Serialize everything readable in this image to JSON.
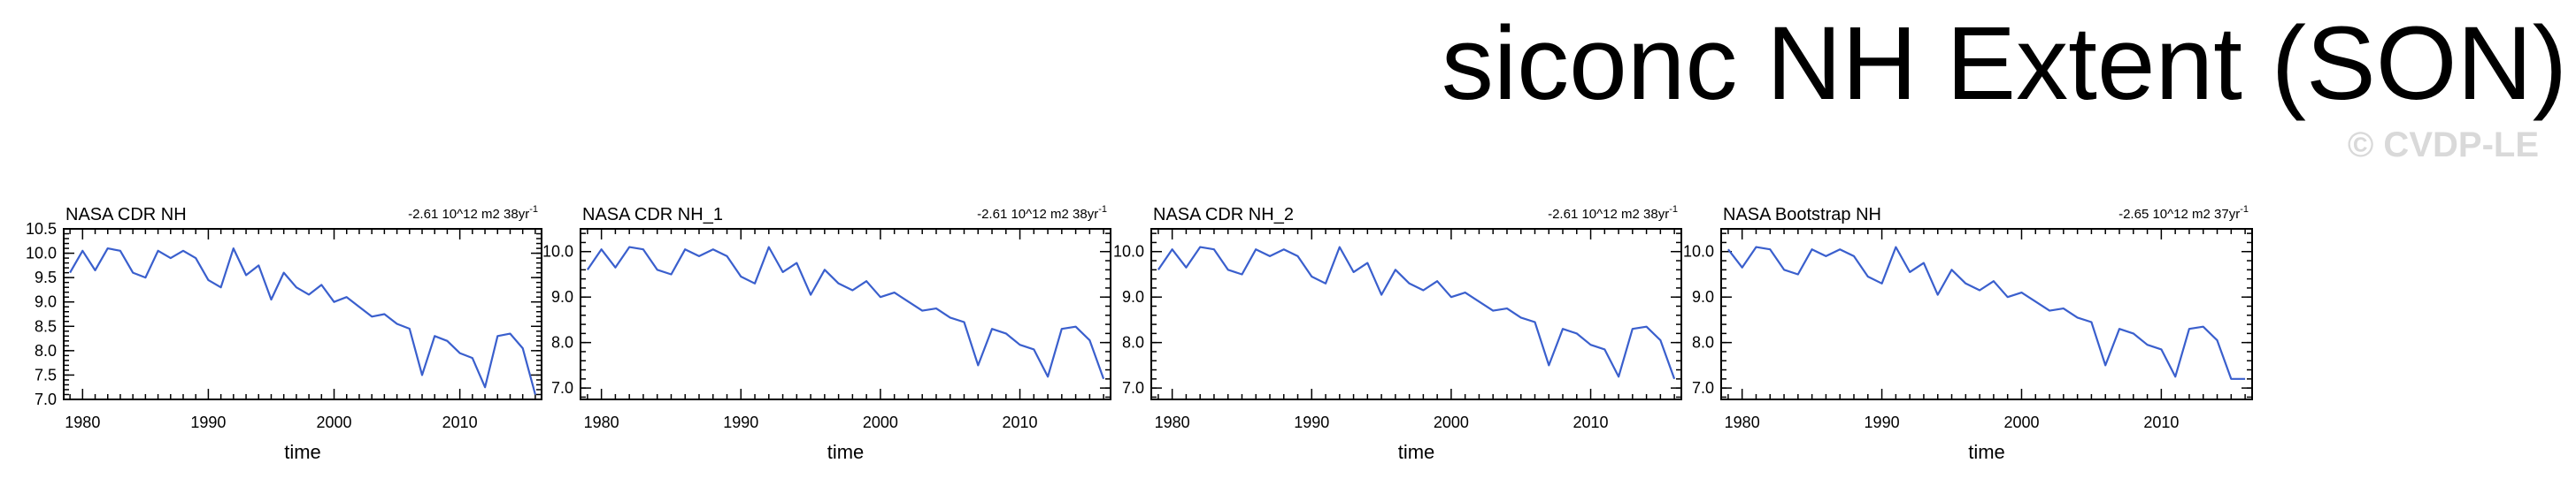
{
  "page": {
    "title": "siconc NH Extent (SON)",
    "watermark": "© CVDP-LE"
  },
  "colors": {
    "line": "#3a5fcd",
    "axis": "#000000",
    "watermark": "#d9d9d9"
  },
  "chart_data": [
    {
      "type": "line",
      "title": "NASA CDR NH",
      "trend": "-2.61 10^12 m2 38yr",
      "trend_sup": "-1",
      "xlabel": "time",
      "ylabel": "",
      "xlim": [
        1978.5,
        2016.5
      ],
      "ylim": [
        7.0,
        10.5
      ],
      "xticks": [
        1980,
        1990,
        2000,
        2010
      ],
      "yticks": [
        7.0,
        7.5,
        8.0,
        8.5,
        9.0,
        9.5,
        10.0,
        10.5
      ],
      "ytick_labels": [
        "7.0",
        "7.5",
        "8.0",
        "8.5",
        "9.0",
        "9.5",
        "10.0",
        "10.5"
      ],
      "x": [
        1979,
        1980,
        1981,
        1982,
        1983,
        1984,
        1985,
        1986,
        1987,
        1988,
        1989,
        1990,
        1991,
        1992,
        1993,
        1994,
        1995,
        1996,
        1997,
        1998,
        1999,
        2000,
        2001,
        2002,
        2003,
        2004,
        2005,
        2006,
        2007,
        2008,
        2009,
        2010,
        2011,
        2012,
        2013,
        2014,
        2015,
        2016
      ],
      "y": [
        9.6,
        10.05,
        9.65,
        10.1,
        10.05,
        9.6,
        9.5,
        10.05,
        9.9,
        10.05,
        9.9,
        9.45,
        9.3,
        10.1,
        9.55,
        9.75,
        9.05,
        9.6,
        9.3,
        9.15,
        9.35,
        9.0,
        9.1,
        8.9,
        8.7,
        8.75,
        8.55,
        8.45,
        7.5,
        8.3,
        8.2,
        7.95,
        7.85,
        7.25,
        8.3,
        8.35,
        8.05,
        7.1
      ]
    },
    {
      "type": "line",
      "title": "NASA CDR NH_1",
      "trend": "-2.61 10^12 m2 38yr",
      "trend_sup": "-1",
      "xlabel": "time",
      "ylabel": "",
      "xlim": [
        1978.5,
        2016.5
      ],
      "ylim": [
        6.75,
        10.5
      ],
      "xticks": [
        1980,
        1990,
        2000,
        2010
      ],
      "yticks": [
        7.0,
        8.0,
        9.0,
        10.0
      ],
      "ytick_labels": [
        "7.0",
        "8.0",
        "9.0",
        "10.0"
      ],
      "x": [
        1979,
        1980,
        1981,
        1982,
        1983,
        1984,
        1985,
        1986,
        1987,
        1988,
        1989,
        1990,
        1991,
        1992,
        1993,
        1994,
        1995,
        1996,
        1997,
        1998,
        1999,
        2000,
        2001,
        2002,
        2003,
        2004,
        2005,
        2006,
        2007,
        2008,
        2009,
        2010,
        2011,
        2012,
        2013,
        2014,
        2015,
        2016
      ],
      "y": [
        9.6,
        10.05,
        9.65,
        10.1,
        10.05,
        9.6,
        9.5,
        10.05,
        9.9,
        10.05,
        9.9,
        9.45,
        9.3,
        10.1,
        9.55,
        9.75,
        9.05,
        9.6,
        9.3,
        9.15,
        9.35,
        9.0,
        9.1,
        8.9,
        8.7,
        8.75,
        8.55,
        8.45,
        7.5,
        8.3,
        8.2,
        7.95,
        7.85,
        7.25,
        8.3,
        8.35,
        8.05,
        7.2
      ]
    },
    {
      "type": "line",
      "title": "NASA CDR NH_2",
      "trend": "-2.61 10^12 m2 38yr",
      "trend_sup": "-1",
      "xlabel": "time",
      "ylabel": "",
      "xlim": [
        1978.5,
        2016.5
      ],
      "ylim": [
        6.75,
        10.5
      ],
      "xticks": [
        1980,
        1990,
        2000,
        2010
      ],
      "yticks": [
        7.0,
        8.0,
        9.0,
        10.0
      ],
      "ytick_labels": [
        "7.0",
        "8.0",
        "9.0",
        "10.0"
      ],
      "x": [
        1979,
        1980,
        1981,
        1982,
        1983,
        1984,
        1985,
        1986,
        1987,
        1988,
        1989,
        1990,
        1991,
        1992,
        1993,
        1994,
        1995,
        1996,
        1997,
        1998,
        1999,
        2000,
        2001,
        2002,
        2003,
        2004,
        2005,
        2006,
        2007,
        2008,
        2009,
        2010,
        2011,
        2012,
        2013,
        2014,
        2015,
        2016
      ],
      "y": [
        9.6,
        10.05,
        9.65,
        10.1,
        10.05,
        9.6,
        9.5,
        10.05,
        9.9,
        10.05,
        9.9,
        9.45,
        9.3,
        10.1,
        9.55,
        9.75,
        9.05,
        9.6,
        9.3,
        9.15,
        9.35,
        9.0,
        9.1,
        8.9,
        8.7,
        8.75,
        8.55,
        8.45,
        7.5,
        8.3,
        8.2,
        7.95,
        7.85,
        7.25,
        8.3,
        8.35,
        8.05,
        7.2
      ]
    },
    {
      "type": "line",
      "title": "NASA Bootstrap NH",
      "trend": "-2.65 10^12 m2 37yr",
      "trend_sup": "-1",
      "xlabel": "time",
      "ylabel": "",
      "xlim": [
        1978.5,
        2016.5
      ],
      "ylim": [
        6.75,
        10.5
      ],
      "xticks": [
        1980,
        1990,
        2000,
        2010
      ],
      "yticks": [
        7.0,
        8.0,
        9.0,
        10.0
      ],
      "ytick_labels": [
        "7.0",
        "8.0",
        "9.0",
        "10.0"
      ],
      "x": [
        1979,
        1980,
        1981,
        1982,
        1983,
        1984,
        1985,
        1986,
        1987,
        1988,
        1989,
        1990,
        1991,
        1992,
        1993,
        1994,
        1995,
        1996,
        1997,
        1998,
        1999,
        2000,
        2001,
        2002,
        2003,
        2004,
        2005,
        2006,
        2007,
        2008,
        2009,
        2010,
        2011,
        2012,
        2013,
        2014,
        2015,
        2016
      ],
      "y": [
        10.05,
        9.65,
        10.1,
        10.05,
        9.6,
        9.5,
        10.05,
        9.9,
        10.05,
        9.9,
        9.45,
        9.3,
        10.1,
        9.55,
        9.75,
        9.05,
        9.6,
        9.3,
        9.15,
        9.35,
        9.0,
        9.1,
        8.9,
        8.7,
        8.75,
        8.55,
        8.45,
        7.5,
        8.3,
        8.2,
        7.95,
        7.85,
        7.25,
        8.3,
        8.35,
        8.05,
        7.2,
        7.2
      ]
    }
  ]
}
